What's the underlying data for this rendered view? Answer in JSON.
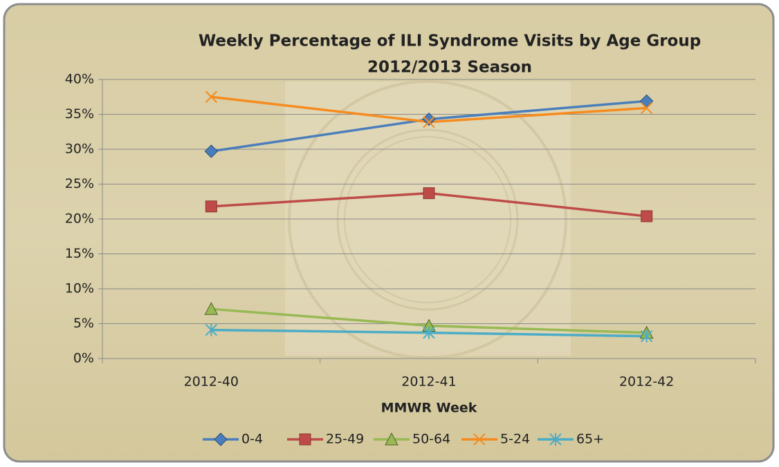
{
  "chart_data": {
    "type": "line",
    "title": "Weekly Percentage of ILI Syndrome Visits by Age Group",
    "subtitle": "2012/2013 Season",
    "x_label": "MMWR Week",
    "categories": [
      "2012-40",
      "2012-41",
      "2012-42"
    ],
    "series": [
      {
        "name": "0-4",
        "color": "#4a7ebb",
        "marker": "diamond",
        "values": [
          29.7,
          34.3,
          36.9
        ]
      },
      {
        "name": "25-49",
        "color": "#be4b48",
        "marker": "square",
        "values": [
          21.8,
          23.7,
          20.4
        ]
      },
      {
        "name": "50-64",
        "color": "#98b954",
        "marker": "triangle",
        "values": [
          7.1,
          4.7,
          3.7
        ]
      },
      {
        "name": "5-24",
        "color": "#f68b1f",
        "marker": "x",
        "values": [
          37.5,
          33.9,
          35.9
        ]
      },
      {
        "name": "65+",
        "color": "#4bacc6",
        "marker": "star",
        "values": [
          4.1,
          3.7,
          3.2
        ]
      }
    ],
    "ylim": [
      0,
      40
    ],
    "yticks": [
      {
        "value": 0,
        "label": "0%"
      },
      {
        "value": 5,
        "label": "5%"
      },
      {
        "value": 10,
        "label": "10%"
      },
      {
        "value": 15,
        "label": "15%"
      },
      {
        "value": 20,
        "label": "20%"
      },
      {
        "value": 25,
        "label": "25%"
      },
      {
        "value": 30,
        "label": "30%"
      },
      {
        "value": 35,
        "label": "35%"
      },
      {
        "value": 40,
        "label": "40%"
      }
    ],
    "grid": true,
    "legend": "bottom"
  }
}
